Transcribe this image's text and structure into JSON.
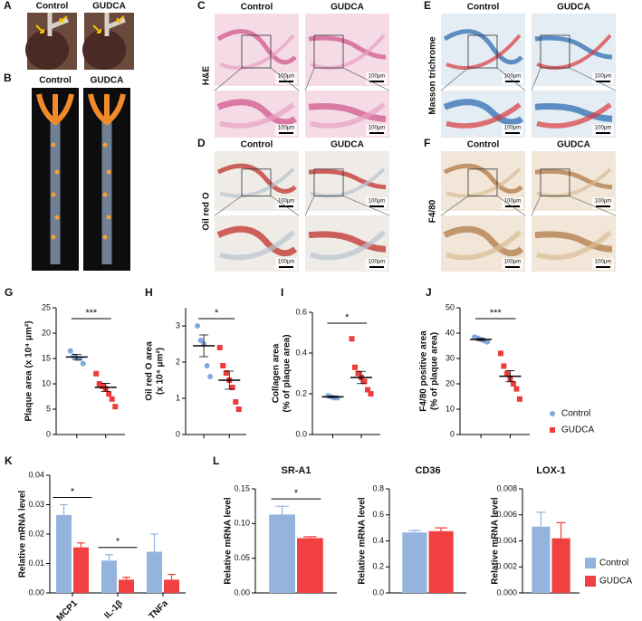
{
  "figure_panels": [
    {
      "letter": "A",
      "columns": [
        "Control",
        "GUDCA"
      ]
    },
    {
      "letter": "B",
      "columns": [
        "Control",
        "GUDCA"
      ]
    },
    {
      "letter": "C",
      "columns": [
        "Control",
        "GUDCA"
      ],
      "row_label": "H&E",
      "scale_bar": "100μm"
    },
    {
      "letter": "D",
      "columns": [
        "Control",
        "GUDCA"
      ],
      "row_label": "Oil red O",
      "scale_bar": "100μm"
    },
    {
      "letter": "E",
      "columns": [
        "Control",
        "GUDCA"
      ],
      "row_label": "Masson trichrome",
      "scale_bar": "100μm"
    },
    {
      "letter": "F",
      "columns": [
        "Control",
        "GUDCA"
      ],
      "row_label": "F4/80",
      "scale_bar": "100μm"
    }
  ],
  "chart_data": [
    {
      "type": "dot",
      "panel": "G",
      "ylabel": [
        "Plaque area (x 10⁴ μm²)"
      ],
      "ylim": [
        0,
        25
      ],
      "yticks": [
        0,
        5,
        10,
        15,
        20,
        25
      ],
      "significance": "***",
      "series": [
        {
          "name": "Control",
          "color": "#7fa9dc",
          "marker": "circle",
          "values": [
            16.5,
            15.5,
            15,
            15,
            14
          ],
          "mean": 15.3,
          "sem": 0.5
        },
        {
          "name": "GUDCA",
          "color": "#ee3b3b",
          "marker": "square",
          "values": [
            12,
            10,
            9.5,
            9,
            8,
            7,
            5.5
          ],
          "mean": 9.3,
          "sem": 0.8
        }
      ]
    },
    {
      "type": "dot",
      "panel": "H",
      "ylabel": [
        "Oil red O area",
        "(x 10⁴ μm²)"
      ],
      "ylim": [
        0,
        3.5
      ],
      "yticks": [
        0,
        1,
        2,
        3
      ],
      "significance": "*",
      "series": [
        {
          "name": "Control",
          "color": "#7fa9dc",
          "marker": "circle",
          "values": [
            3.0,
            2.6,
            2.5,
            1.9,
            1.6
          ],
          "mean": 2.45,
          "sem": 0.3
        },
        {
          "name": "GUDCA",
          "color": "#ee3b3b",
          "marker": "square",
          "values": [
            2.4,
            1.9,
            1.7,
            1.5,
            1.3,
            0.9,
            0.7
          ],
          "mean": 1.5,
          "sem": 0.25
        }
      ]
    },
    {
      "type": "dot",
      "panel": "I",
      "ylabel": [
        "Collagen area",
        "(% of plaque area)"
      ],
      "ylim": [
        0,
        0.6
      ],
      "yticks": [
        {
          "value": 0,
          "label": "0.0"
        },
        0.2,
        0.4,
        0.6
      ],
      "significance": "*",
      "series": [
        {
          "name": "Control",
          "color": "#7fa9dc",
          "marker": "circle",
          "values": [
            0.19,
            0.185,
            0.18,
            0.18
          ],
          "mean": 0.185,
          "sem": 0.003
        },
        {
          "name": "GUDCA",
          "color": "#ee3b3b",
          "marker": "square",
          "values": [
            0.47,
            0.33,
            0.3,
            0.28,
            0.26,
            0.22,
            0.2
          ],
          "mean": 0.28,
          "sem": 0.03
        }
      ]
    },
    {
      "type": "dot",
      "panel": "J",
      "ylabel": [
        "F4/80 positive area",
        "(% of plaque area)"
      ],
      "ylim": [
        0,
        50
      ],
      "yticks": [
        0,
        10,
        20,
        30,
        40,
        50
      ],
      "significance": "***",
      "legend": true,
      "series": [
        {
          "name": "Control",
          "color": "#7fa9dc",
          "marker": "circle",
          "values": [
            38.5,
            38,
            37.5,
            37,
            36.5
          ],
          "mean": 37.5,
          "sem": 0.4
        },
        {
          "name": "GUDCA",
          "color": "#ee3b3b",
          "marker": "square",
          "values": [
            32,
            27,
            24,
            22,
            20,
            18,
            14
          ],
          "mean": 23,
          "sem": 2.2
        }
      ]
    },
    {
      "type": "bar",
      "panel": "K",
      "ylabel": [
        "Relative mRNA level"
      ],
      "categories": [
        "MCP1",
        "IL-1β",
        "TNFa"
      ],
      "ylim": [
        0,
        0.04
      ],
      "yticks": [
        {
          "value": 0,
          "label": "0.00"
        },
        0.01,
        0.02,
        0.03,
        0.04
      ],
      "significance": [
        "*",
        "*",
        null
      ],
      "series": [
        {
          "name": "Control",
          "color": "#94b4de",
          "values": [
            0.0265,
            0.011,
            0.014
          ],
          "errors": [
            0.0035,
            0.002,
            0.006
          ]
        },
        {
          "name": "GUDCA",
          "color": "#f04040",
          "values": [
            0.0155,
            0.0045,
            0.0045
          ],
          "errors": [
            0.0015,
            0.0008,
            0.0018
          ]
        }
      ]
    },
    {
      "type": "bar",
      "panel": "L",
      "title": "SR-A1",
      "ylabel": [
        "Relative mRNA level"
      ],
      "ylim": [
        0,
        0.15
      ],
      "yticks": [
        {
          "value": 0,
          "label": "0.00"
        },
        0.05,
        {
          "value": 0.1,
          "label": "0.10"
        },
        0.15
      ],
      "significance": "*",
      "series": [
        {
          "name": "Control",
          "color": "#94b4de",
          "values": [
            0.113
          ],
          "errors": [
            0.012
          ]
        },
        {
          "name": "GUDCA",
          "color": "#f04040",
          "values": [
            0.079
          ],
          "errors": [
            0.002
          ]
        }
      ]
    },
    {
      "type": "bar",
      "title": "CD36",
      "ylabel": [
        "Relative mRNA level"
      ],
      "ylim": [
        0,
        0.8
      ],
      "yticks": [
        {
          "value": 0,
          "label": "0.0"
        },
        0.2,
        0.4,
        0.6,
        0.8
      ],
      "series": [
        {
          "name": "Control",
          "color": "#94b4de",
          "values": [
            0.465
          ],
          "errors": [
            0.015
          ]
        },
        {
          "name": "GUDCA",
          "color": "#f04040",
          "values": [
            0.475
          ],
          "errors": [
            0.025
          ]
        }
      ]
    },
    {
      "type": "bar",
      "title": "LOX-1",
      "ylabel": [
        "Relative mRNA level"
      ],
      "ylim": [
        0,
        0.008
      ],
      "yticks": [
        {
          "value": 0,
          "label": "0.000"
        },
        0.002,
        0.004,
        0.006,
        0.008
      ],
      "legend": true,
      "series": [
        {
          "name": "Control",
          "color": "#94b4de",
          "values": [
            0.0051
          ],
          "errors": [
            0.0011
          ]
        },
        {
          "name": "GUDCA",
          "color": "#f04040",
          "values": [
            0.0042
          ],
          "errors": [
            0.0012
          ]
        }
      ]
    }
  ]
}
